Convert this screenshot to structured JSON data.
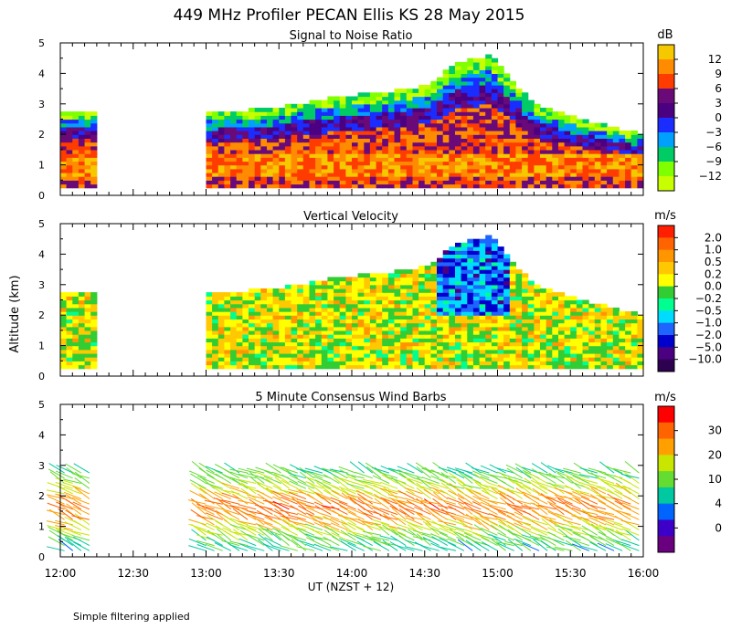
{
  "title": "449 MHz Profiler PECAN Ellis KS 28 May 2015",
  "y_axis_label": "Altitude (km)",
  "x_axis_label": "UT  (NZST + 12)",
  "footnote": "Simple filtering applied",
  "x_ticks": [
    "12:00",
    "12:30",
    "13:00",
    "13:30",
    "14:00",
    "14:30",
    "15:00",
    "15:30",
    "16:00"
  ],
  "chart_data": [
    {
      "type": "heatmap",
      "title": "Signal to Noise Ratio",
      "unit": "dB",
      "x_range_hours": [
        12,
        16
      ],
      "y_range_km": [
        0,
        5
      ],
      "y_ticks": [
        "0",
        "1",
        "2",
        "3",
        "4",
        "5"
      ],
      "colorbar_labels": [
        "12",
        "9",
        "6",
        "3",
        "0",
        "−3",
        "−6",
        "−9",
        "−12"
      ],
      "colorbar_colors": [
        "#f5c800",
        "#ff8c00",
        "#ff3c00",
        "#6a0a78",
        "#4b0082",
        "#1a2cff",
        "#00a0ff",
        "#00cc66",
        "#80ff00",
        "#c8ff00"
      ],
      "data_coverage": [
        [
          12.0,
          12.25
        ],
        [
          13.0,
          16.0
        ]
      ],
      "echo_top_km": [
        [
          12.0,
          2.8
        ],
        [
          12.25,
          2.8
        ],
        [
          13.0,
          2.7
        ],
        [
          13.5,
          2.9
        ],
        [
          13.85,
          3.2
        ],
        [
          14.0,
          3.3
        ],
        [
          14.25,
          3.4
        ],
        [
          14.5,
          3.6
        ],
        [
          14.75,
          4.4
        ],
        [
          14.95,
          4.6
        ],
        [
          15.25,
          3.0
        ],
        [
          15.5,
          2.6
        ],
        [
          16.0,
          2.0
        ]
      ]
    },
    {
      "type": "heatmap",
      "title": "Vertical Velocity",
      "unit": "m/s",
      "x_range_hours": [
        12,
        16
      ],
      "y_range_km": [
        0,
        5
      ],
      "y_ticks": [
        "0",
        "1",
        "2",
        "3",
        "4",
        "5"
      ],
      "colorbar_labels": [
        "2.0",
        "1.0",
        "0.5",
        "0.2",
        "0.0",
        "−0.2",
        "−0.5",
        "−1.0",
        "−2.0",
        "−5.0",
        "−10.0"
      ],
      "colorbar_colors": [
        "#ff1e00",
        "#ff6400",
        "#ff9600",
        "#ffc800",
        "#ffff00",
        "#32cd32",
        "#00ff90",
        "#00dcff",
        "#1e64ff",
        "#0000cd",
        "#4b0082",
        "#2d0050"
      ],
      "data_coverage": [
        [
          12.0,
          12.25
        ],
        [
          13.0,
          16.0
        ]
      ],
      "echo_top_km": [
        [
          12.0,
          2.8
        ],
        [
          12.25,
          2.8
        ],
        [
          13.0,
          2.7
        ],
        [
          13.5,
          2.9
        ],
        [
          13.85,
          3.2
        ],
        [
          14.0,
          3.3
        ],
        [
          14.25,
          3.4
        ],
        [
          14.5,
          3.6
        ],
        [
          14.75,
          4.4
        ],
        [
          14.95,
          4.6
        ],
        [
          15.25,
          3.0
        ],
        [
          15.5,
          2.6
        ],
        [
          16.0,
          2.0
        ]
      ]
    },
    {
      "type": "scatter",
      "title": "5 Minute Consensus Wind Barbs",
      "unit": "m/s",
      "x_range_hours": [
        12,
        16
      ],
      "y_range_km": [
        0,
        5
      ],
      "y_ticks": [
        "0",
        "1",
        "2",
        "3",
        "4",
        "5"
      ],
      "colorbar_labels": [
        "30",
        "20",
        "10",
        "4",
        "0"
      ],
      "colorbar_colors": [
        "#ff0000",
        "#ff6400",
        "#ffa000",
        "#c8e600",
        "#64dc32",
        "#00c8a0",
        "#0064ff",
        "#3c00c8",
        "#6a0080"
      ],
      "data_coverage": [
        [
          12.0,
          12.25
        ],
        [
          13.0,
          16.0
        ]
      ],
      "low_level_jet": {
        "height_km": 1.5,
        "speed_ms": 20
      }
    }
  ]
}
